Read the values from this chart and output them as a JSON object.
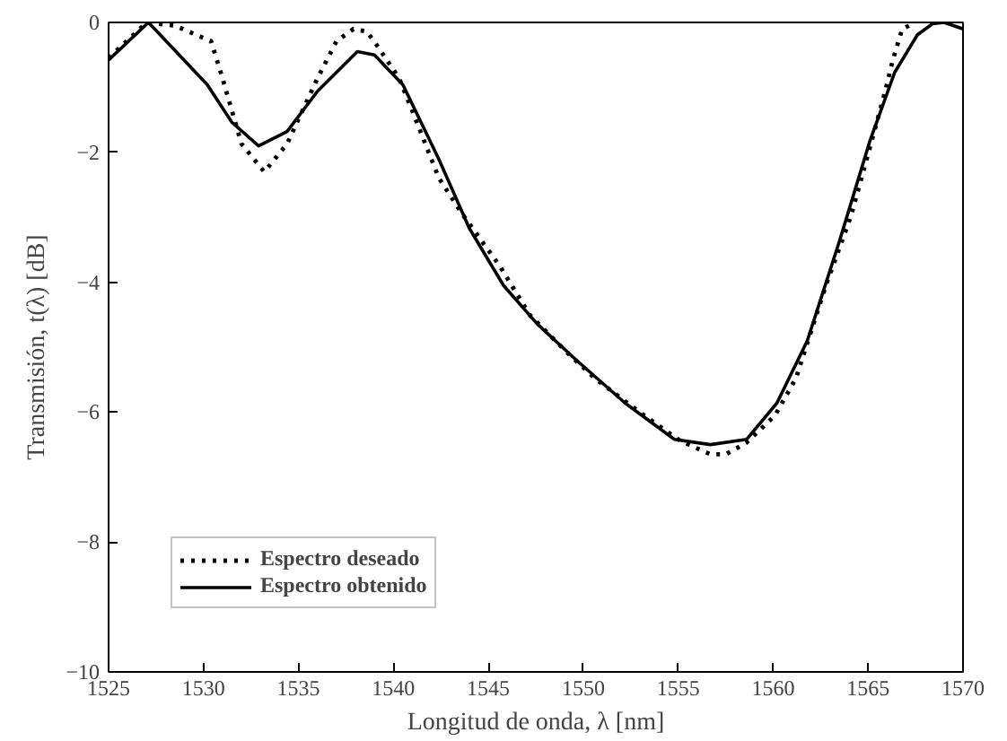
{
  "chart_data": {
    "type": "line",
    "xlabel": "Longitud de onda, λ [nm]",
    "ylabel": "Transmisión, t(λ) [dB]",
    "xlim": [
      1525,
      1570
    ],
    "xticks": [
      1525,
      1530,
      1535,
      1540,
      1545,
      1550,
      1555,
      1560,
      1565,
      1570
    ],
    "ylim": [
      -10,
      0
    ],
    "yticks": [
      -10,
      -8,
      -6,
      -4,
      -2,
      0
    ],
    "grid": false,
    "legend": "bottom left",
    "marker": "none",
    "series": [
      {
        "name": "Espectro deseado",
        "color": "#000000",
        "line_style": "dotted",
        "x": [
          1525,
          1527,
          1528.5,
          1530.4,
          1531,
          1532,
          1533.2,
          1534.4,
          1536,
          1537,
          1537.9,
          1538.6,
          1539.2,
          1540.3,
          1541.1,
          1542.4,
          1543.7,
          1545.6,
          1547.2,
          1549,
          1550.6,
          1553.2,
          1555.1,
          1556.7,
          1557.5,
          1558.6,
          1560.1,
          1561.2,
          1562.8,
          1564.1,
          1565.1,
          1565.9,
          1566.3,
          1566.8,
          1567.5
        ],
        "values": [
          -0.55,
          0,
          -0.05,
          -0.29,
          -0.86,
          -1.87,
          -2.3,
          -1.87,
          -0.86,
          -0.29,
          -0.1,
          -0.14,
          -0.38,
          -0.86,
          -1.44,
          -2.4,
          -2.98,
          -3.75,
          -4.51,
          -5.04,
          -5.48,
          -6.05,
          -6.44,
          -6.65,
          -6.65,
          -6.47,
          -6.05,
          -5.48,
          -4.03,
          -2.98,
          -1.92,
          -1.06,
          -0.58,
          -0.1,
          0
        ]
      },
      {
        "name": "Espectro obtenido",
        "color": "#000000",
        "line_style": "solid",
        "x": [
          1525,
          1527.1,
          1530.2,
          1531.5,
          1532.9,
          1534.4,
          1536,
          1538.1,
          1539,
          1540.5,
          1542.4,
          1544,
          1545.8,
          1547.6,
          1549.6,
          1552.2,
          1554.8,
          1556.7,
          1558.6,
          1560.2,
          1561.8,
          1563.5,
          1565.1,
          1566.4,
          1567.6,
          1568.4,
          1569,
          1570
        ],
        "values": [
          -0.58,
          0,
          -0.96,
          -1.54,
          -1.9,
          -1.68,
          -1.06,
          -0.45,
          -0.5,
          -0.96,
          -2.11,
          -3.17,
          -4.05,
          -4.65,
          -5.19,
          -5.86,
          -6.42,
          -6.5,
          -6.42,
          -5.86,
          -4.9,
          -3.36,
          -1.82,
          -0.77,
          -0.19,
          -0.02,
          0,
          -0.1
        ]
      }
    ]
  }
}
